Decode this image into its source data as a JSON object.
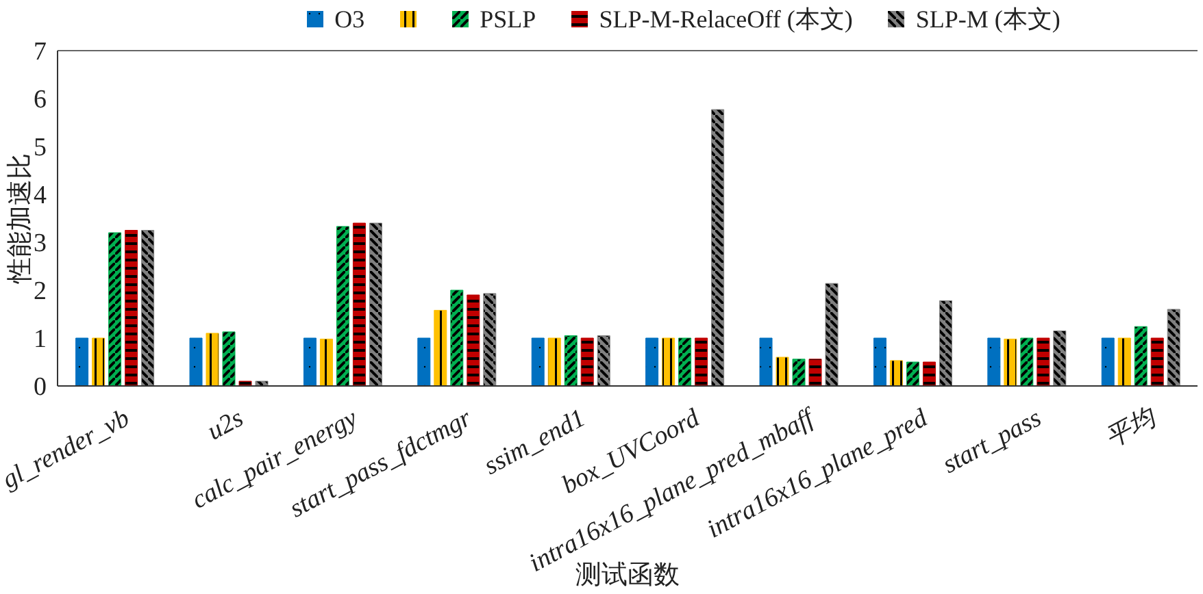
{
  "chart_data": {
    "type": "bar",
    "xlabel": "测试函数",
    "ylabel": "性能加速比",
    "categories": [
      "gl_render_vb",
      "u2s",
      "calc_pair_energy",
      "start_pass_fdctmgr",
      "ssim_end1",
      "box_UVCoord",
      "intra16x16_plane_pred_mbaff",
      "intra16x16_plane_pred",
      "start_pass",
      "平均"
    ],
    "series": [
      {
        "name": "O3",
        "color": "#0070c0",
        "values": [
          1,
          1,
          1,
          1,
          1,
          1,
          1,
          1,
          1,
          1
        ]
      },
      {
        "color": "#ffc000",
        "values": [
          1,
          1.1,
          0.98,
          1.58,
          1.0,
          1,
          0.6,
          0.53,
          0.98,
          1
        ]
      },
      {
        "name": "PSLP",
        "color": "#00b050",
        "values": [
          3.2,
          1.13,
          3.33,
          2.0,
          1.05,
          1,
          0.56,
          0.5,
          1,
          1.24
        ]
      },
      {
        "name": "SLP-M-RelaceOff (本文)",
        "color": "#c00000",
        "values": [
          3.25,
          0.1,
          3.4,
          1.9,
          1.0,
          1,
          0.56,
          0.5,
          1,
          1
        ]
      },
      {
        "name": "SLP-M (本文)",
        "color": "#808080",
        "values": [
          3.25,
          0.1,
          3.4,
          1.93,
          1.05,
          5.77,
          2.14,
          1.78,
          1.15,
          1.6
        ]
      }
    ],
    "ylim": [
      0,
      7
    ],
    "yticks": [
      0,
      1,
      2,
      3,
      4,
      5,
      6,
      7
    ],
    "grid": false,
    "legend": "top"
  }
}
